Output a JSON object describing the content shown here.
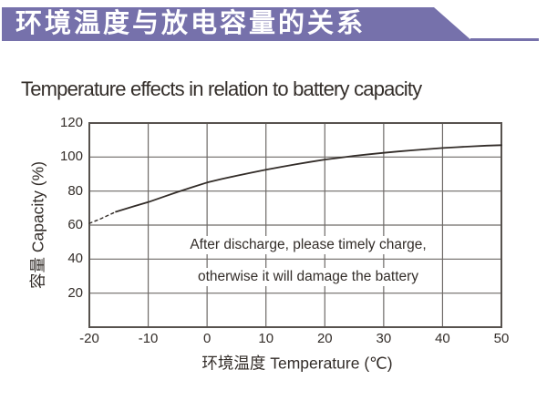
{
  "banner": {
    "title": "环境温度与放电容量的关系",
    "color": "#7671ab"
  },
  "page_title": "Temperature effects in relation to battery capacity",
  "colors": {
    "banner": "#7671ab",
    "ink": "#332d29",
    "grid": "#6e6a67",
    "frame": "#57524e"
  },
  "chart_data": {
    "type": "line",
    "title": "Temperature effects in relation to battery capacity",
    "xlabel": "环境温度 Temperature (℃)",
    "ylabel": "容量 Capacity (%)",
    "xlim": [
      -20,
      50
    ],
    "ylim": [
      0,
      120
    ],
    "xticks": [
      -20,
      -10,
      0,
      10,
      20,
      30,
      40,
      50
    ],
    "yticks": [
      120,
      100,
      80,
      60,
      40,
      20
    ],
    "grid": true,
    "legend": "none",
    "series": [
      {
        "name": "capacity-extrapolated",
        "style": "dashed",
        "points": [
          [
            -20,
            61
          ],
          [
            -18,
            63.8
          ],
          [
            -15.5,
            67.8
          ]
        ]
      },
      {
        "name": "capacity",
        "style": "solid",
        "points": [
          [
            -15.5,
            67.8
          ],
          [
            -12.5,
            71
          ],
          [
            -10,
            73.5
          ],
          [
            -7.5,
            76.5
          ],
          [
            -5,
            79.5
          ],
          [
            -2.5,
            82.3
          ],
          [
            0,
            85
          ],
          [
            2.5,
            87.1
          ],
          [
            5,
            89
          ],
          [
            7.5,
            90.8
          ],
          [
            10,
            92.5
          ],
          [
            12.5,
            94.1
          ],
          [
            15,
            95.7
          ],
          [
            17.5,
            97.1
          ],
          [
            20,
            98.5
          ],
          [
            22.5,
            99.6
          ],
          [
            25,
            100.7
          ],
          [
            27.5,
            101.6
          ],
          [
            30,
            102.5
          ],
          [
            32.5,
            103.3
          ],
          [
            35,
            104
          ],
          [
            37.5,
            104.7
          ],
          [
            40,
            105.3
          ],
          [
            42.5,
            105.8
          ],
          [
            45,
            106.3
          ],
          [
            47.5,
            106.7
          ],
          [
            50,
            107
          ]
        ]
      }
    ],
    "annotation": [
      "After discharge, please timely charge,",
      "otherwise it will damage the battery"
    ]
  }
}
